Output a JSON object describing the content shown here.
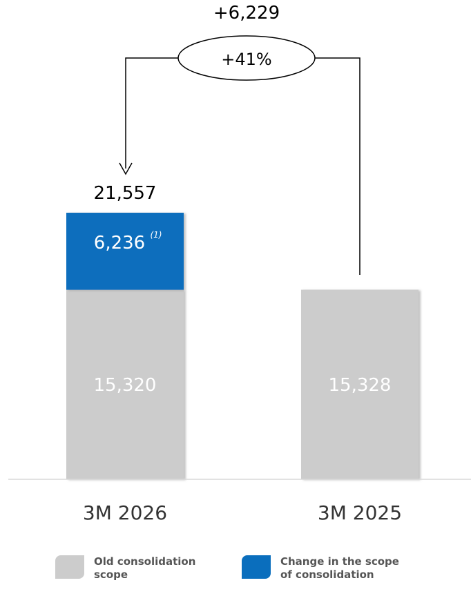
{
  "chart_data": {
    "type": "bar",
    "stacked": true,
    "categories": [
      "3M 2026",
      "3M 2025"
    ],
    "series": [
      {
        "name": "Old consolidation scope",
        "values": [
          15320,
          15328
        ],
        "color": "#cccccc"
      },
      {
        "name": "Change in the scope of consolidation",
        "values": [
          6236,
          0
        ],
        "color": "#0a6ebd"
      }
    ],
    "totals": [
      "21,557",
      ""
    ],
    "value_labels": [
      [
        "15,320",
        "15,328"
      ],
      [
        "6,236",
        ""
      ]
    ],
    "footnote_marker": "(1)",
    "change": {
      "absolute": "+6,229",
      "percent": "+41%"
    },
    "ylim": [
      0,
      21557
    ],
    "grid": false,
    "legend": "bottom"
  },
  "legend": {
    "items": [
      {
        "label": "Old consolidation scope",
        "color": "#cccccc"
      },
      {
        "label": "Change in the scope of consolidation",
        "color": "#0a6ebd"
      }
    ]
  }
}
